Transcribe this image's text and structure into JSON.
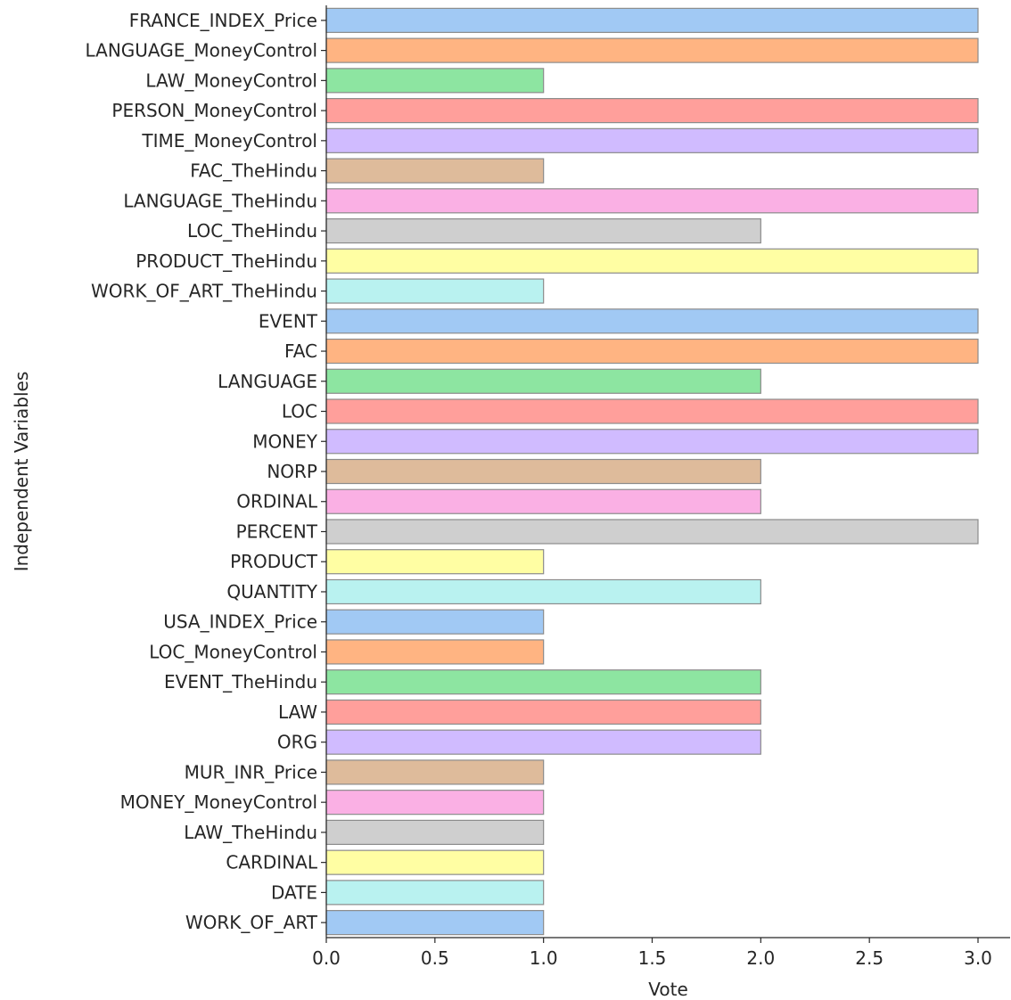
{
  "chart_data": {
    "type": "bar",
    "orientation": "horizontal",
    "xlabel": "Vote",
    "ylabel": "Independent Variables",
    "xlim": [
      0,
      3.15
    ],
    "x_ticks": [
      "0.0",
      "0.5",
      "1.0",
      "1.5",
      "2.0",
      "2.5",
      "3.0"
    ],
    "x_tick_values": [
      0,
      0.5,
      1,
      1.5,
      2,
      2.5,
      3
    ],
    "grid": false,
    "legend": "none",
    "palette": [
      "#a1c9f4",
      "#ffb482",
      "#8de5a1",
      "#ff9f9b",
      "#d0bbff",
      "#debb9b",
      "#fab0e4",
      "#cfcfcf",
      "#fffea3",
      "#b9f2f0"
    ],
    "categories": [
      "FRANCE_INDEX_Price",
      "LANGUAGE_MoneyControl",
      "LAW_MoneyControl",
      "PERSON_MoneyControl",
      "TIME_MoneyControl",
      "FAC_TheHindu",
      "LANGUAGE_TheHindu",
      "LOC_TheHindu",
      "PRODUCT_TheHindu",
      "WORK_OF_ART_TheHindu",
      "EVENT",
      "FAC",
      "LANGUAGE",
      "LOC",
      "MONEY",
      "NORP",
      "ORDINAL",
      "PERCENT",
      "PRODUCT",
      "QUANTITY",
      "USA_INDEX_Price",
      "LOC_MoneyControl",
      "EVENT_TheHindu",
      "LAW",
      "ORG",
      "MUR_INR_Price",
      "MONEY_MoneyControl",
      "LAW_TheHindu",
      "CARDINAL",
      "DATE",
      "WORK_OF_ART"
    ],
    "values": [
      3,
      3,
      1,
      3,
      3,
      1,
      3,
      2,
      3,
      1,
      3,
      3,
      2,
      3,
      3,
      2,
      2,
      3,
      1,
      2,
      1,
      1,
      2,
      2,
      2,
      1,
      1,
      1,
      1,
      1,
      1
    ]
  }
}
